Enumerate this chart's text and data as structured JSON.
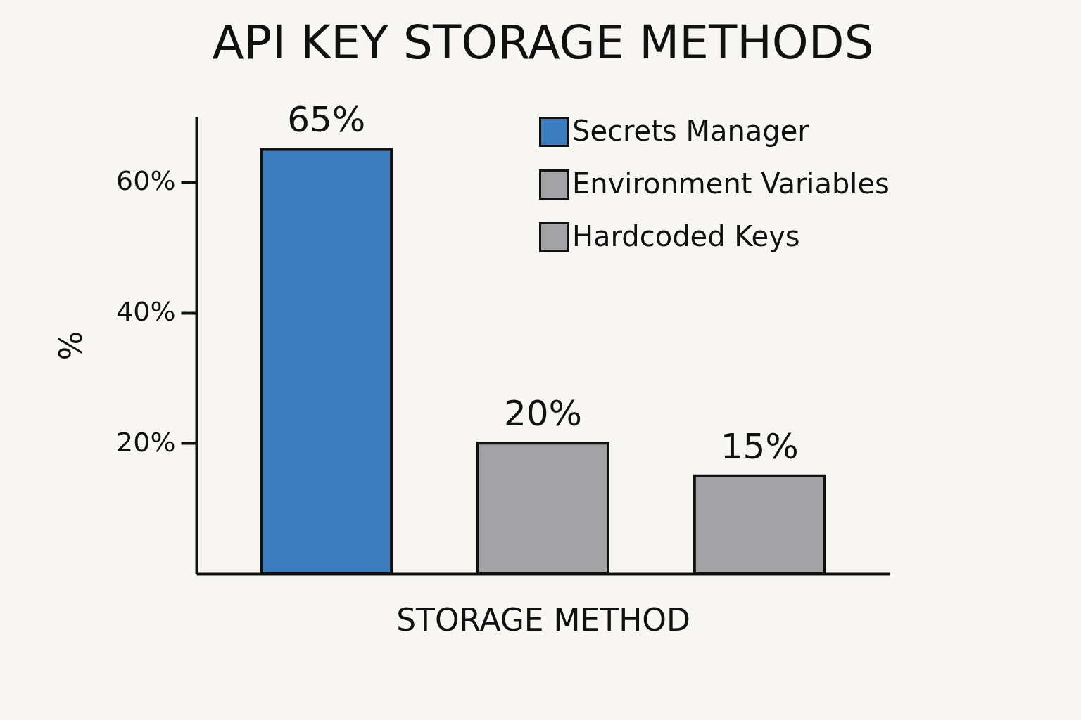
{
  "chart_data": {
    "type": "bar",
    "title": "API KEY STORAGE METHODS",
    "xlabel": "STORAGE METHOD",
    "ylabel": "%",
    "categories": [
      null,
      null,
      null
    ],
    "series": [
      {
        "name": "Secrets Manager",
        "color": "#3b7dbf",
        "values": [
          65,
          null,
          null
        ],
        "value_labels": [
          "65%",
          null,
          null
        ]
      },
      {
        "name": "Environment Variables",
        "color": "#a3a3a6",
        "values": [
          null,
          20,
          null
        ],
        "value_labels": [
          null,
          "20%",
          null
        ]
      },
      {
        "name": "Hardcoded Keys",
        "color": "#a3a3a6",
        "values": [
          null,
          null,
          15
        ],
        "value_labels": [
          null,
          null,
          "15%"
        ]
      }
    ],
    "ylim": [
      0,
      70
    ],
    "yticks": [
      {
        "value": 20,
        "label": "20%"
      },
      {
        "value": 40,
        "label": "40%"
      },
      {
        "value": 60,
        "label": "60%"
      }
    ],
    "tick_labels": "y",
    "grid": false,
    "legend": "top right"
  }
}
